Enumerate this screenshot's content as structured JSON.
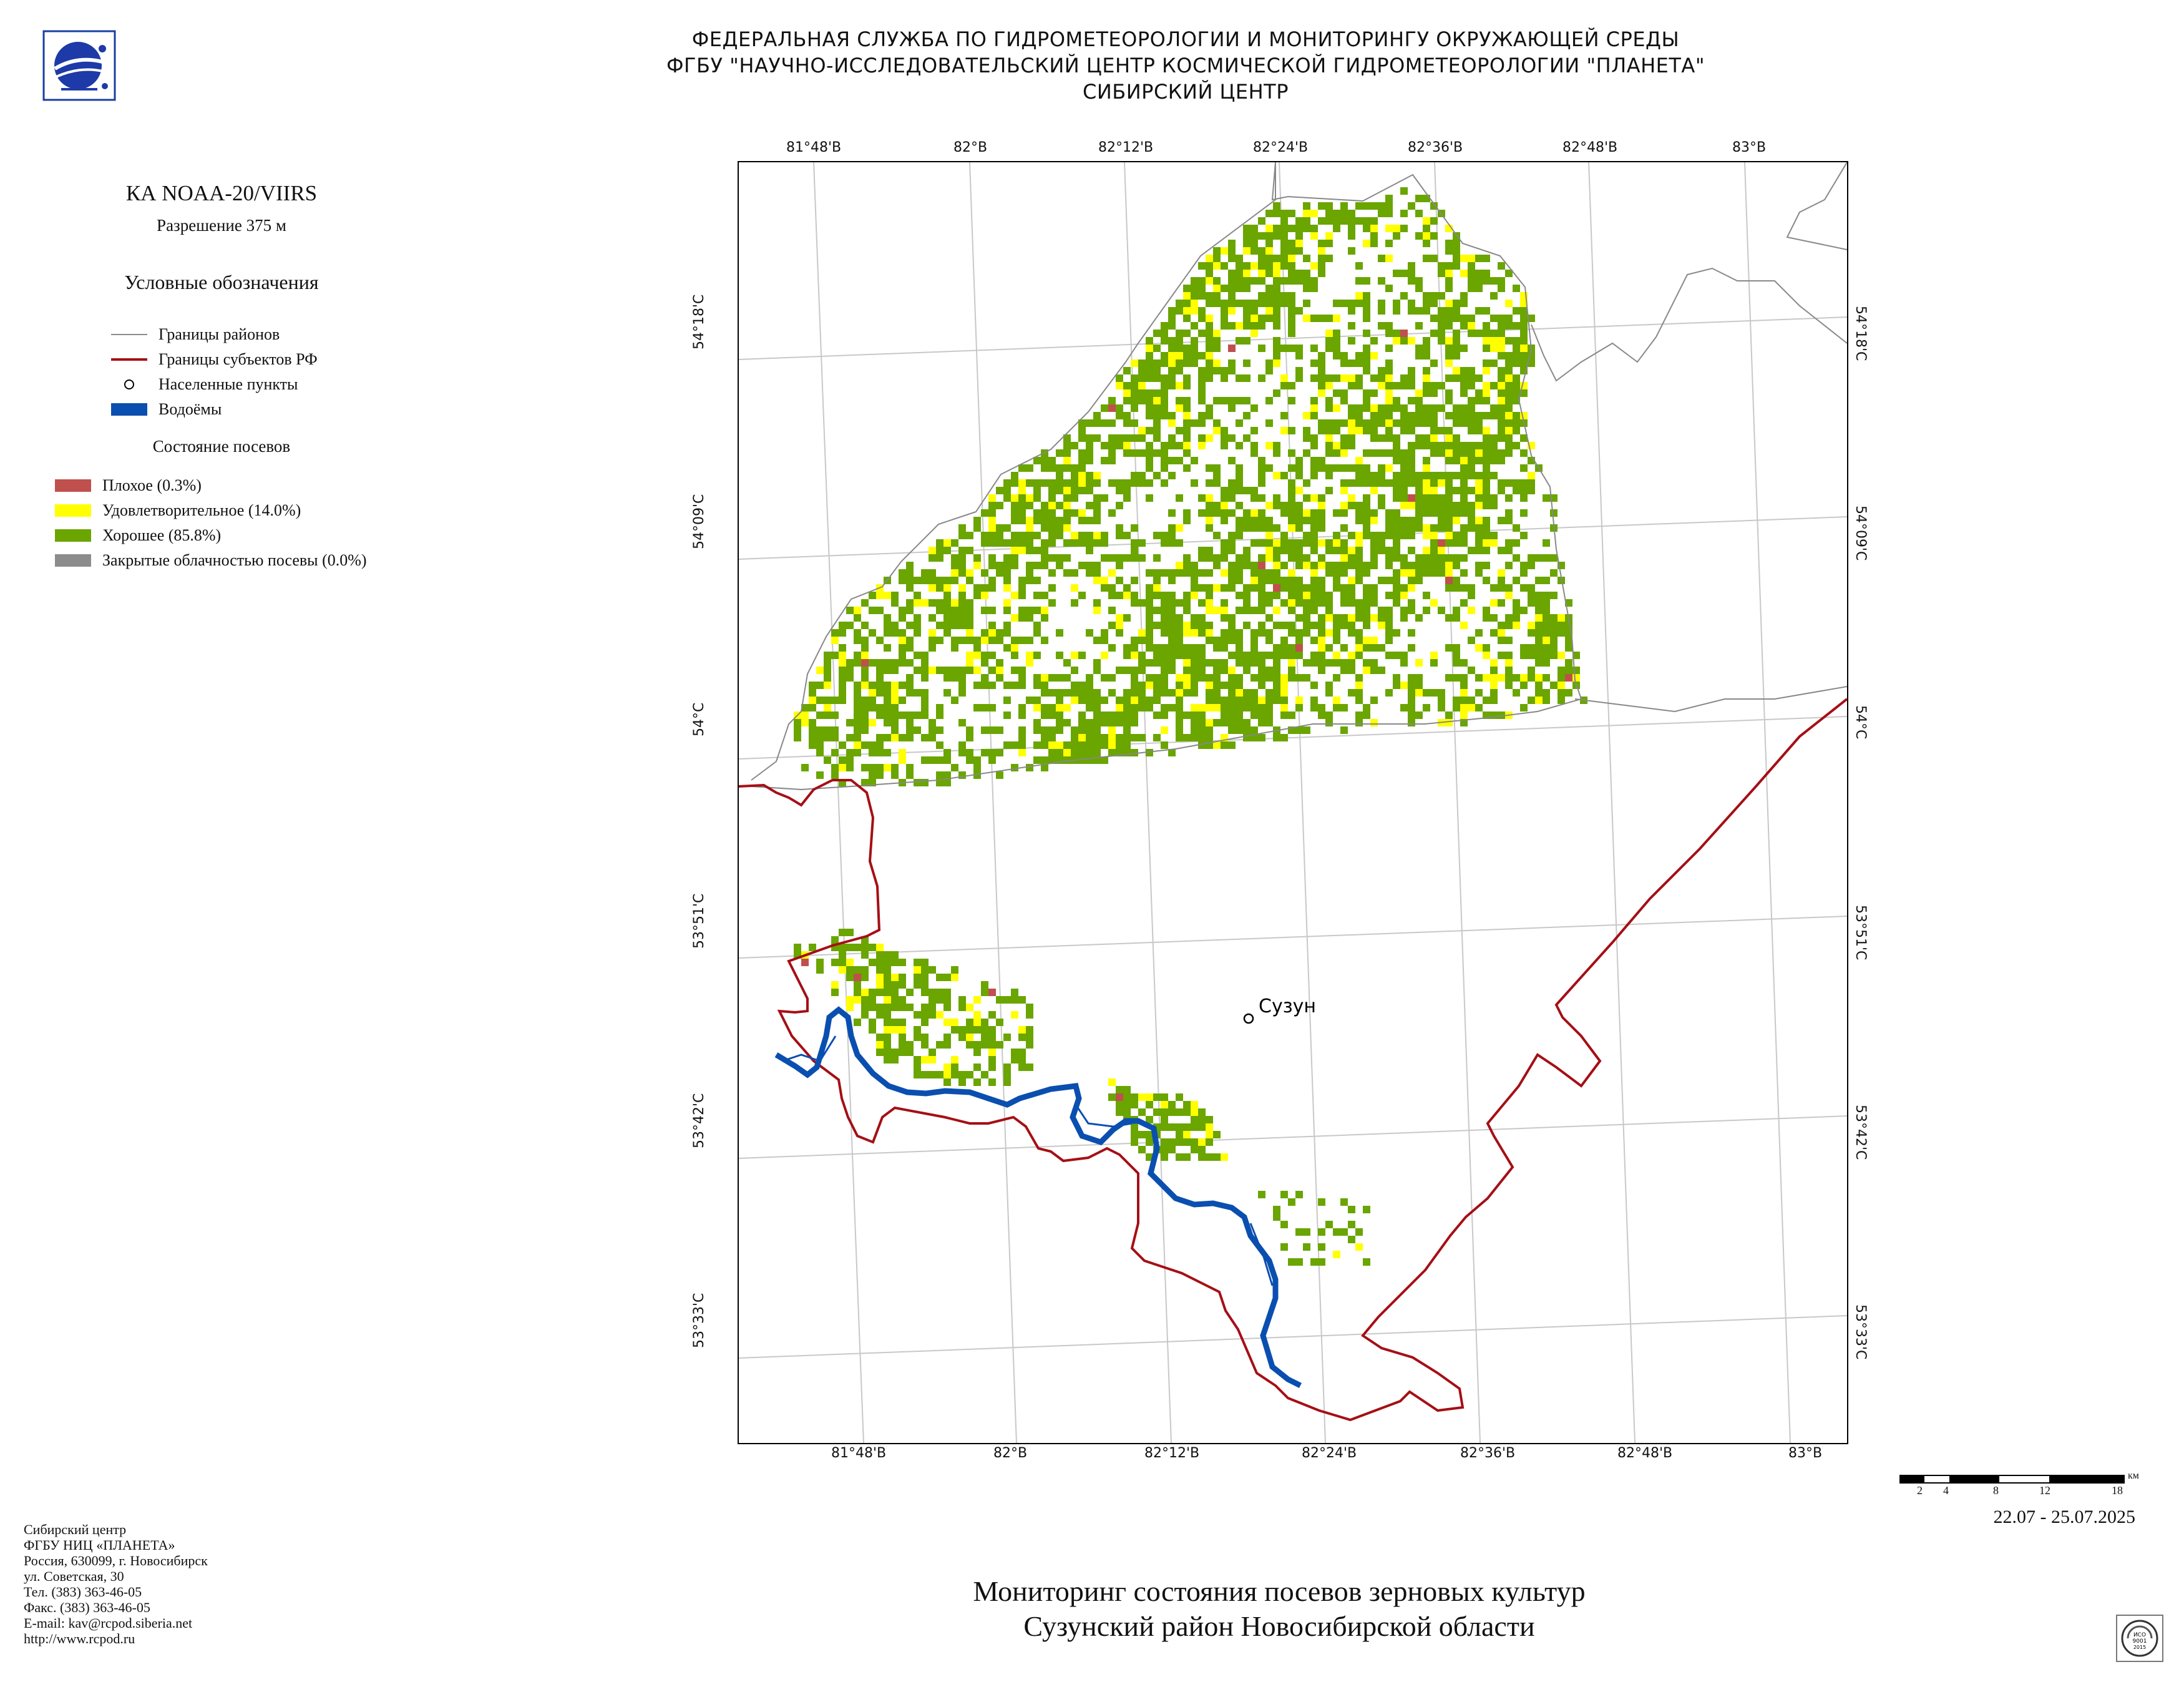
{
  "header": {
    "line1": "ФЕДЕРАЛЬНАЯ СЛУЖБА ПО ГИДРОМЕТЕОРОЛОГИИ И МОНИТОРИНГУ ОКРУЖАЮЩЕЙ СРЕДЫ",
    "line2": "ФГБУ \"НАУЧНО-ИССЛЕДОВАТЕЛЬСКИЙ ЦЕНТР КОСМИЧЕСКОЙ ГИДРОМЕТЕОРОЛОГИИ \"ПЛАНЕТА\"",
    "line3": "СИБИРСКИЙ ЦЕНТР"
  },
  "logo_icon": "planeta-globe-logo",
  "satellite": {
    "name": "КА NOAA-20/VIIRS",
    "resolution": "Разрешение 375 м"
  },
  "legend": {
    "title": "Условные обозначения",
    "items": [
      {
        "label": "Границы районов",
        "symbol": "line",
        "color": "#8a8a8a"
      },
      {
        "label": "Границы субъектов РФ",
        "symbol": "line",
        "color": "#a50f15"
      },
      {
        "label": "Населенные пункты",
        "symbol": "circle",
        "color": "#000000"
      },
      {
        "label": "Водоёмы",
        "symbol": "rect",
        "color": "#0a4fb0"
      }
    ],
    "crop_title": "Состояние посевов",
    "crop_items": [
      {
        "label": "Плохое (0.3%)",
        "color": "#c0504d"
      },
      {
        "label": "Удовлетворительное (14.0%)",
        "color": "#ffff00"
      },
      {
        "label": "Хорошее (85.8%)",
        "color": "#6aa500"
      },
      {
        "label": "Закрытые облачностью посевы (0.0%)",
        "color": "#8c8c8c"
      }
    ]
  },
  "map": {
    "lon_labels": [
      "81°48'В",
      "82°В",
      "82°12'В",
      "82°24'В",
      "82°36'В",
      "82°48'В",
      "83°В"
    ],
    "lat_labels": [
      "54°18'С",
      "54°09'С",
      "54°С",
      "53°51'С",
      "53°42'С",
      "53°33'С"
    ],
    "settlement": "Сузун"
  },
  "scale_bar": {
    "ticks": [
      "2",
      "4",
      "8",
      "12",
      "18"
    ],
    "unit": "км"
  },
  "date_range": "22.07 - 25.07.2025",
  "footer": {
    "lines": [
      "Сибирский центр",
      "ФГБУ НИЦ «ПЛАНЕТА»",
      "Россия, 630099, г. Новосибирск",
      "ул. Советская, 30",
      "Тел. (383) 363-46-05",
      "Факс. (383) 363-46-05",
      "E-mail: kav@rcpod.siberia.net",
      "http://www.rcpod.ru"
    ]
  },
  "title": {
    "line1": "Мониторинг состояния посевов зерновых культур",
    "line2": "Сузунский район Новосибирской области"
  },
  "iso_badge": "ИСО 9001-2015"
}
